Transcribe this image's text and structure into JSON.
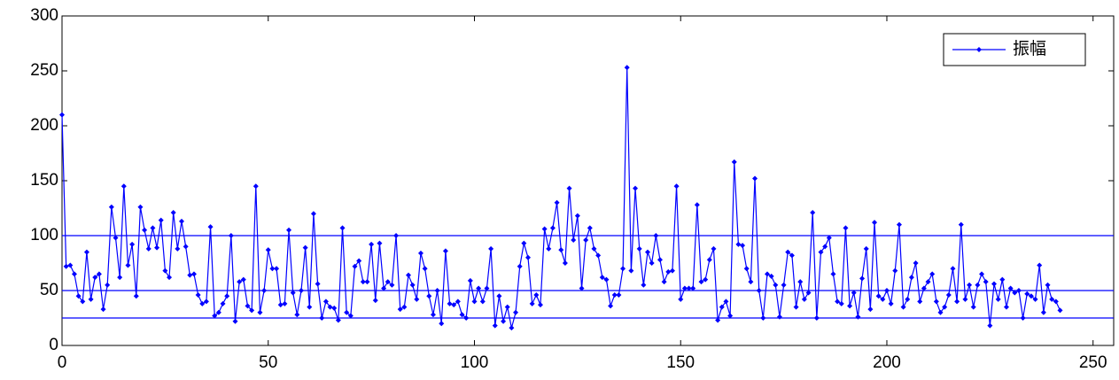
{
  "chart_data": {
    "type": "line",
    "x": [
      0,
      1,
      2,
      3,
      4,
      5,
      6,
      7,
      8,
      9,
      10,
      11,
      12,
      13,
      14,
      15,
      16,
      17,
      18,
      19,
      20,
      21,
      22,
      23,
      24,
      25,
      26,
      27,
      28,
      29,
      30,
      31,
      32,
      33,
      34,
      35,
      36,
      37,
      38,
      39,
      40,
      41,
      42,
      43,
      44,
      45,
      46,
      47,
      48,
      49,
      50,
      51,
      52,
      53,
      54,
      55,
      56,
      57,
      58,
      59,
      60,
      61,
      62,
      63,
      64,
      65,
      66,
      67,
      68,
      69,
      70,
      71,
      72,
      73,
      74,
      75,
      76,
      77,
      78,
      79,
      80,
      81,
      82,
      83,
      84,
      85,
      86,
      87,
      88,
      89,
      90,
      91,
      92,
      93,
      94,
      95,
      96,
      97,
      98,
      99,
      100,
      101,
      102,
      103,
      104,
      105,
      106,
      107,
      108,
      109,
      110,
      111,
      112,
      113,
      114,
      115,
      116,
      117,
      118,
      119,
      120,
      121,
      122,
      123,
      124,
      125,
      126,
      127,
      128,
      129,
      130,
      131,
      132,
      133,
      134,
      135,
      136,
      137,
      138,
      139,
      140,
      141,
      142,
      143,
      144,
      145,
      146,
      147,
      148,
      149,
      150,
      151,
      152,
      153,
      154,
      155,
      156,
      157,
      158,
      159,
      160,
      161,
      162,
      163,
      164,
      165,
      166,
      167,
      168,
      169,
      170,
      171,
      172,
      173,
      174,
      175,
      176,
      177,
      178,
      179,
      180,
      181,
      182,
      183,
      184,
      185,
      186,
      187,
      188,
      189,
      190,
      191,
      192,
      193,
      194,
      195,
      196,
      197,
      198,
      199,
      200,
      201,
      202,
      203,
      204,
      205,
      206,
      207,
      208,
      209,
      210,
      211,
      212,
      213,
      214,
      215,
      216,
      217,
      218,
      219,
      220,
      221,
      222,
      223,
      224,
      225,
      226,
      227,
      228,
      229,
      230,
      231,
      232,
      233,
      234,
      235,
      236,
      237,
      238,
      239,
      240,
      241,
      242
    ],
    "series": [
      {
        "name": "振幅",
        "color": "#0000ff",
        "values": [
          210,
          72,
          73,
          65,
          45,
          40,
          85,
          42,
          62,
          65,
          33,
          55,
          126,
          98,
          62,
          145,
          73,
          92,
          45,
          126,
          105,
          88,
          107,
          89,
          114,
          68,
          62,
          121,
          88,
          113,
          90,
          64,
          65,
          46,
          38,
          40,
          108,
          27,
          30,
          38,
          45,
          100,
          22,
          58,
          60,
          36,
          32,
          145,
          30,
          50,
          87,
          70,
          70,
          37,
          38,
          105,
          48,
          28,
          50,
          89,
          35,
          120,
          56,
          25,
          40,
          35,
          34,
          23,
          107,
          30,
          27,
          72,
          77,
          58,
          58,
          92,
          41,
          93,
          52,
          58,
          55,
          100,
          33,
          35,
          64,
          55,
          42,
          84,
          70,
          45,
          28,
          50,
          20,
          86,
          38,
          37,
          40,
          28,
          25,
          59,
          40,
          52,
          40,
          52,
          88,
          18,
          45,
          22,
          35,
          16,
          30,
          72,
          93,
          80,
          38,
          46,
          37,
          106,
          88,
          107,
          130,
          87,
          75,
          143,
          96,
          118,
          52,
          96,
          107,
          88,
          82,
          62,
          60,
          36,
          46,
          46,
          70,
          253,
          68,
          143,
          88,
          55,
          85,
          75,
          100,
          78,
          58,
          67,
          68,
          145,
          42,
          52,
          52,
          52,
          128,
          58,
          60,
          78,
          88,
          23,
          35,
          40,
          27,
          167,
          92,
          91,
          70,
          58,
          152,
          50,
          25,
          65,
          63,
          55,
          26,
          55,
          85,
          82,
          35,
          58,
          42,
          48,
          121,
          25,
          85,
          90,
          98,
          65,
          40,
          38,
          107,
          36,
          48,
          26,
          61,
          88,
          33,
          112,
          45,
          42,
          50,
          38,
          68,
          110,
          35,
          42,
          62,
          75,
          40,
          52,
          58,
          65,
          40,
          30,
          35,
          46,
          70,
          40,
          110,
          42,
          55,
          35,
          55,
          65,
          58,
          18,
          56,
          42,
          60,
          35,
          52,
          48,
          50,
          25,
          47,
          45,
          42,
          73,
          30,
          55,
          42,
          40,
          32
        ]
      }
    ],
    "reference_lines": [
      100,
      50,
      25
    ],
    "xlim": [
      0,
      255
    ],
    "xticks": [
      0,
      50,
      100,
      150,
      200,
      250
    ],
    "ylim": [
      0,
      300
    ],
    "yticks": [
      0,
      50,
      100,
      150,
      200,
      250,
      300
    ],
    "legend": "upper right"
  }
}
